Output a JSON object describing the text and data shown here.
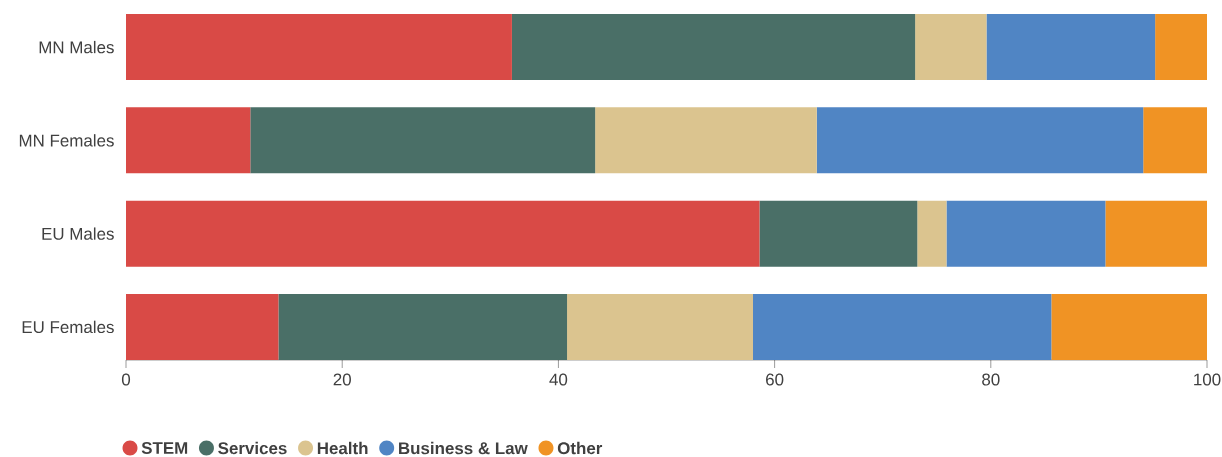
{
  "chart_data": {
    "type": "bar",
    "orientation": "horizontal",
    "stacked": true,
    "categories": [
      "MN Males",
      "MN Females",
      "EU Males",
      "EU Females"
    ],
    "series": [
      {
        "name": "STEM",
        "color": "#d94a46",
        "values": [
          35.7,
          11.5,
          58.6,
          14.1
        ]
      },
      {
        "name": "Services",
        "color": "#4a6f67",
        "values": [
          37.3,
          31.9,
          14.6,
          26.7
        ]
      },
      {
        "name": "Health",
        "color": "#dbc48f",
        "values": [
          6.6,
          20.5,
          2.7,
          17.2
        ]
      },
      {
        "name": "Business & Law",
        "color": "#5085c4",
        "values": [
          15.6,
          30.2,
          14.7,
          27.6
        ]
      },
      {
        "name": "Other",
        "color": "#f09324",
        "values": [
          4.8,
          5.9,
          9.4,
          14.4
        ]
      }
    ],
    "xlim": [
      0,
      100
    ],
    "xticks": [
      0,
      20,
      40,
      60,
      80,
      100
    ],
    "grid": false,
    "legend": "bottom"
  }
}
